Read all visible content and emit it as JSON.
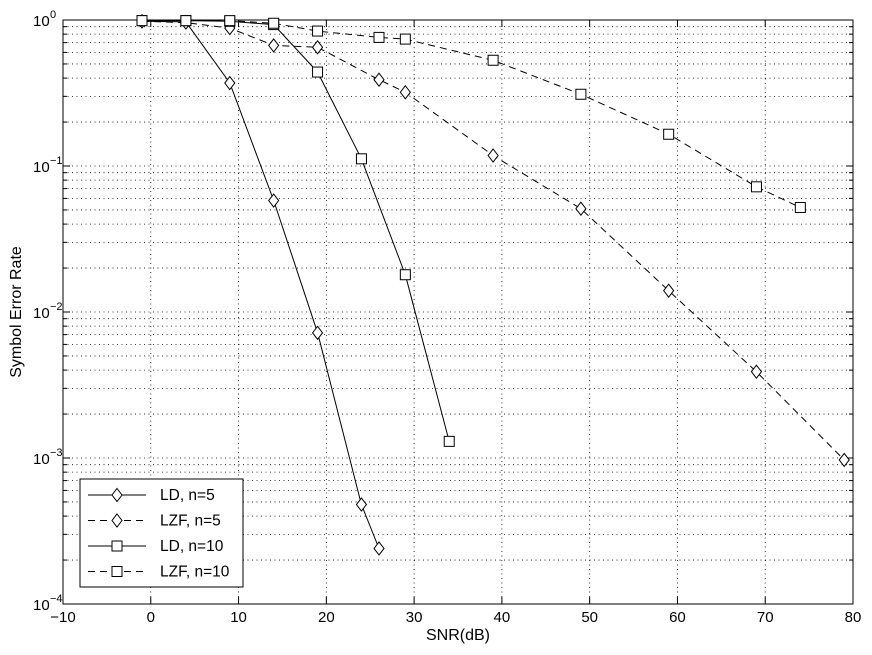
{
  "chart_data": {
    "type": "line",
    "title": "",
    "xlabel": "SNR(dB)",
    "ylabel": "Symbol Error Rate",
    "xlim": [
      -10,
      80
    ],
    "ylim": [
      0.0001,
      1
    ],
    "yscale": "log",
    "grid": true,
    "legend_position": "bottom-left",
    "x_ticks": [
      {
        "value": -10,
        "label": "−10"
      },
      {
        "value": 0,
        "label": "0"
      },
      {
        "value": 10,
        "label": "10"
      },
      {
        "value": 20,
        "label": "20"
      },
      {
        "value": 30,
        "label": "30"
      },
      {
        "value": 40,
        "label": "40"
      },
      {
        "value": 50,
        "label": "50"
      },
      {
        "value": 60,
        "label": "60"
      },
      {
        "value": 70,
        "label": "70"
      },
      {
        "value": 80,
        "label": "80"
      }
    ],
    "y_ticks": [
      {
        "value": 1,
        "exp": "0"
      },
      {
        "value": 0.1,
        "exp": "−1"
      },
      {
        "value": 0.01,
        "exp": "−2"
      },
      {
        "value": 0.001,
        "exp": "−3"
      },
      {
        "value": 0.0001,
        "exp": "−4"
      }
    ],
    "y_tick_base": "10",
    "series": [
      {
        "name": "LD, n=5",
        "line": "solid",
        "marker": "diamond",
        "x": [
          -1,
          4,
          9,
          14,
          19,
          24,
          26
        ],
        "y": [
          0.98,
          0.97,
          0.37,
          0.058,
          0.0072,
          0.00048,
          0.00024
        ]
      },
      {
        "name": "LZF, n=5",
        "line": "dashed",
        "marker": "diamond",
        "x": [
          -1,
          4,
          9,
          14,
          19,
          26,
          29,
          39,
          49,
          59,
          69,
          79
        ],
        "y": [
          0.98,
          0.96,
          0.88,
          0.67,
          0.65,
          0.39,
          0.32,
          0.118,
          0.051,
          0.014,
          0.0039,
          0.00097
        ]
      },
      {
        "name": "LD, n=10",
        "line": "solid",
        "marker": "square",
        "x": [
          -1,
          4,
          9,
          14,
          19,
          24,
          29,
          34
        ],
        "y": [
          0.99,
          0.99,
          0.98,
          0.93,
          0.44,
          0.112,
          0.018,
          0.0013
        ]
      },
      {
        "name": "LZF, n=10",
        "line": "dashed",
        "marker": "square",
        "x": [
          -1,
          4,
          9,
          14,
          19,
          26,
          29,
          39,
          49,
          59,
          69,
          74
        ],
        "y": [
          0.99,
          0.99,
          0.99,
          0.95,
          0.84,
          0.76,
          0.74,
          0.53,
          0.31,
          0.165,
          0.072,
          0.052
        ]
      }
    ]
  }
}
